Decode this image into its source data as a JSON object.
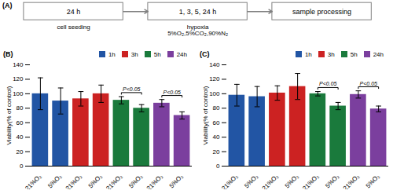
{
  "chart_data": [
    {
      "type": "flow",
      "title": "(A)",
      "categories": [
        "24 h",
        "1, 3, 5, 24 h",
        "sample processing"
      ],
      "annotations": [
        {
          "text": "cell seeding",
          "at": 0
        },
        {
          "text": "hypoxia\n5%O₂,5%CO₂,90%N₂",
          "at": 1
        }
      ]
    },
    {
      "type": "bar",
      "title": "(B)",
      "categories": [
        "21%O₂",
        "5%O₂",
        "21%O₂",
        "5%O₂",
        "21%O₂",
        "5%O₂",
        "21%O₂",
        "5%O₂"
      ],
      "series": [
        {
          "name": "1h",
          "color": "#2255a4",
          "values": [
            100,
            90,
            null,
            null,
            null,
            null,
            null,
            null
          ],
          "errors": [
            22,
            18,
            null,
            null,
            null,
            null,
            null,
            null
          ]
        },
        {
          "name": "3h",
          "color": "#cc2222",
          "values": [
            null,
            null,
            93,
            100,
            null,
            null,
            null,
            null
          ],
          "errors": [
            null,
            null,
            10,
            12,
            null,
            null,
            null,
            null
          ]
        },
        {
          "name": "5h",
          "color": "#1a7a3c",
          "values": [
            null,
            null,
            null,
            null,
            91,
            80,
            null,
            null
          ],
          "errors": [
            null,
            null,
            null,
            null,
            5,
            5,
            null,
            null
          ]
        },
        {
          "name": "24h",
          "color": "#7b3f9e",
          "values": [
            null,
            null,
            null,
            null,
            null,
            null,
            87,
            70
          ],
          "errors": [
            null,
            null,
            null,
            null,
            null,
            null,
            5,
            5
          ]
        }
      ],
      "ylabel": "Viability(% of control)",
      "ylim": [
        0,
        140
      ],
      "yticks": [
        0,
        20,
        40,
        60,
        80,
        100,
        120,
        140
      ],
      "legend": "upper right",
      "annotations": [
        {
          "text": "P<0.05",
          "between": [
            4,
            5
          ]
        },
        {
          "text": "P<0.05",
          "between": [
            6,
            7
          ]
        }
      ]
    },
    {
      "type": "bar",
      "title": "(C)",
      "categories": [
        "21%O₂",
        "5%O₂",
        "21%O₂",
        "5%O₂",
        "21%O₂",
        "5%O₂",
        "21%O₂",
        "5%O₂"
      ],
      "series": [
        {
          "name": "1h",
          "color": "#2255a4",
          "values": [
            98,
            96,
            null,
            null,
            null,
            null,
            null,
            null
          ],
          "errors": [
            15,
            14,
            null,
            null,
            null,
            null,
            null,
            null
          ]
        },
        {
          "name": "3h",
          "color": "#cc2222",
          "values": [
            null,
            null,
            101,
            110,
            null,
            null,
            null,
            null
          ],
          "errors": [
            null,
            null,
            10,
            18,
            null,
            null,
            null,
            null
          ]
        },
        {
          "name": "5h",
          "color": "#1a7a3c",
          "values": [
            null,
            null,
            null,
            null,
            100,
            83,
            null,
            null
          ],
          "errors": [
            null,
            null,
            null,
            null,
            3,
            5,
            null,
            null
          ]
        },
        {
          "name": "24h",
          "color": "#7b3f9e",
          "values": [
            null,
            null,
            null,
            null,
            null,
            null,
            99,
            79
          ],
          "errors": [
            null,
            null,
            null,
            null,
            null,
            null,
            5,
            4
          ]
        }
      ],
      "ylabel": "Viability(% of control)",
      "ylim": [
        0,
        140
      ],
      "yticks": [
        0,
        20,
        40,
        60,
        80,
        100,
        120,
        140
      ],
      "legend": "upper right",
      "annotations": [
        {
          "text": "P<0.05",
          "between": [
            4,
            5
          ]
        },
        {
          "text": "P<0.05",
          "between": [
            6,
            7
          ]
        }
      ]
    }
  ]
}
